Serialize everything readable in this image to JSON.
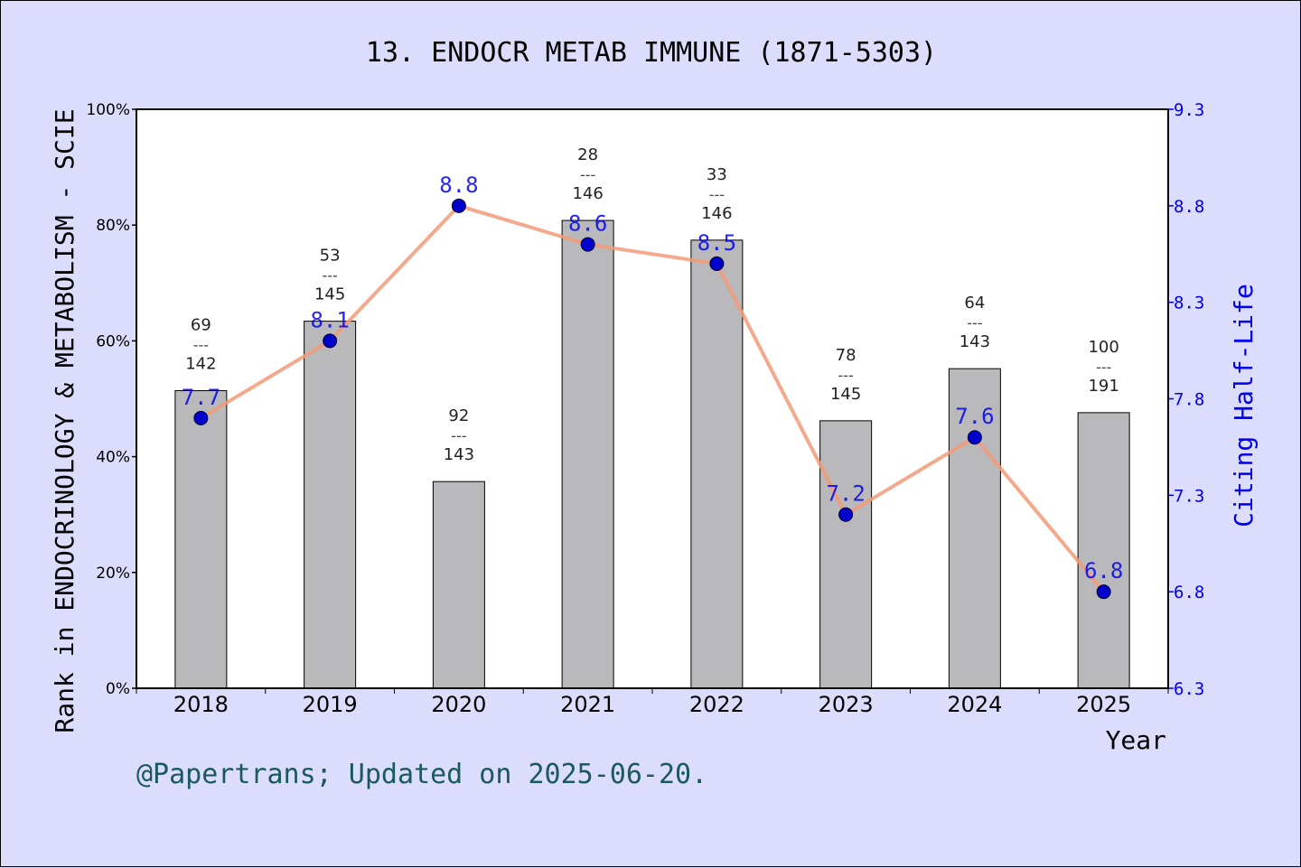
{
  "chart_data": {
    "type": "bar",
    "title": "13. ENDOCR METAB IMMUNE (1871-5303)",
    "xlabel": "Year",
    "ylabel": "Rank in ENDOCRINOLOGY & METABOLISM - SCIE",
    "y2label": "Citing Half-Life",
    "categories": [
      "2018",
      "2019",
      "2020",
      "2021",
      "2022",
      "2023",
      "2024",
      "2025"
    ],
    "ylim": [
      0,
      100
    ],
    "y_ticks": [
      "0%",
      "20%",
      "40%",
      "60%",
      "80%",
      "100%"
    ],
    "y2lim": [
      6.3,
      9.3
    ],
    "y2_ticks": [
      "6.3",
      "6.8",
      "7.3",
      "7.8",
      "8.3",
      "8.8",
      "9.3"
    ],
    "series": [
      {
        "kind": "bar",
        "axis": "left",
        "values": [
          51.4,
          63.4,
          35.7,
          80.8,
          77.4,
          46.2,
          55.2,
          47.6
        ],
        "rank": [
          "69",
          "53",
          "92",
          "28",
          "33",
          "78",
          "64",
          "100"
        ],
        "total": [
          "142",
          "145",
          "143",
          "146",
          "146",
          "145",
          "143",
          "191"
        ],
        "separator": "---"
      },
      {
        "kind": "line",
        "axis": "right",
        "x": [
          "2018",
          "2019",
          "2020",
          "2021",
          "2022",
          "2023",
          "2024",
          "2025"
        ],
        "values": [
          7.7,
          8.1,
          8.8,
          8.6,
          8.5,
          7.2,
          7.6,
          6.8
        ],
        "labels": [
          "7.7",
          "8.1",
          "8.8",
          "8.6",
          "8.5",
          "7.2",
          "7.6",
          "6.8"
        ]
      }
    ],
    "grid": false,
    "legend": "none"
  },
  "footer": "@Papertrans; Updated on 2025-06-20.",
  "colors": {
    "background": "#dcdcfc",
    "plot_bg": "#ffffff",
    "bar": "#b9b9bb",
    "line": "#f39a78",
    "marker": "#0000cc",
    "right_axis": "#0000ee",
    "footer": "#1a5a5a"
  }
}
